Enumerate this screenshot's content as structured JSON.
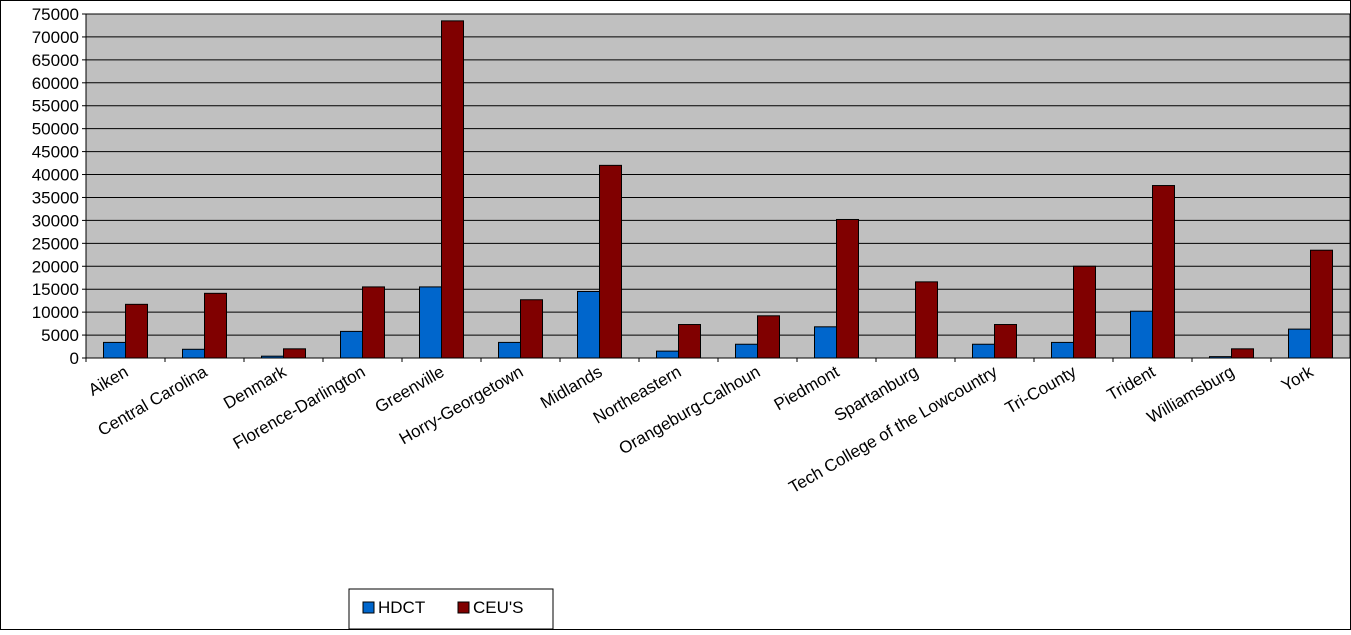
{
  "chart_data": {
    "type": "bar",
    "categories": [
      "Aiken",
      "Central Carolina",
      "Denmark",
      "Florence-Darlington",
      "Greenville",
      "Horry-Georgetown",
      "Midlands",
      "Northeastern",
      "Orangeburg-Calhoun",
      "Piedmont",
      "Spartanburg",
      "Tech College of the Lowcountry",
      "Tri-County",
      "Trident",
      "Williamsburg",
      "York"
    ],
    "series": [
      {
        "name": "HDCT",
        "color": "#0066CC",
        "values": [
          3400,
          1900,
          400,
          5800,
          15500,
          3400,
          14500,
          1500,
          3000,
          6800,
          0,
          3000,
          3400,
          10200,
          300,
          6300
        ]
      },
      {
        "name": "CEU'S",
        "color": "#800000",
        "values": [
          11700,
          14100,
          2000,
          15500,
          73500,
          12700,
          42000,
          7300,
          9200,
          30200,
          16600,
          7300,
          20000,
          37600,
          2000,
          23500
        ]
      }
    ],
    "ylim": [
      0,
      75000
    ],
    "yticks": [
      0,
      5000,
      10000,
      15000,
      20000,
      25000,
      30000,
      35000,
      40000,
      45000,
      50000,
      55000,
      60000,
      65000,
      70000,
      75000
    ],
    "grid": true,
    "plot_background": "#C0C0C0",
    "legend_position": "bottom-left",
    "title": "",
    "xlabel": "",
    "ylabel": ""
  }
}
